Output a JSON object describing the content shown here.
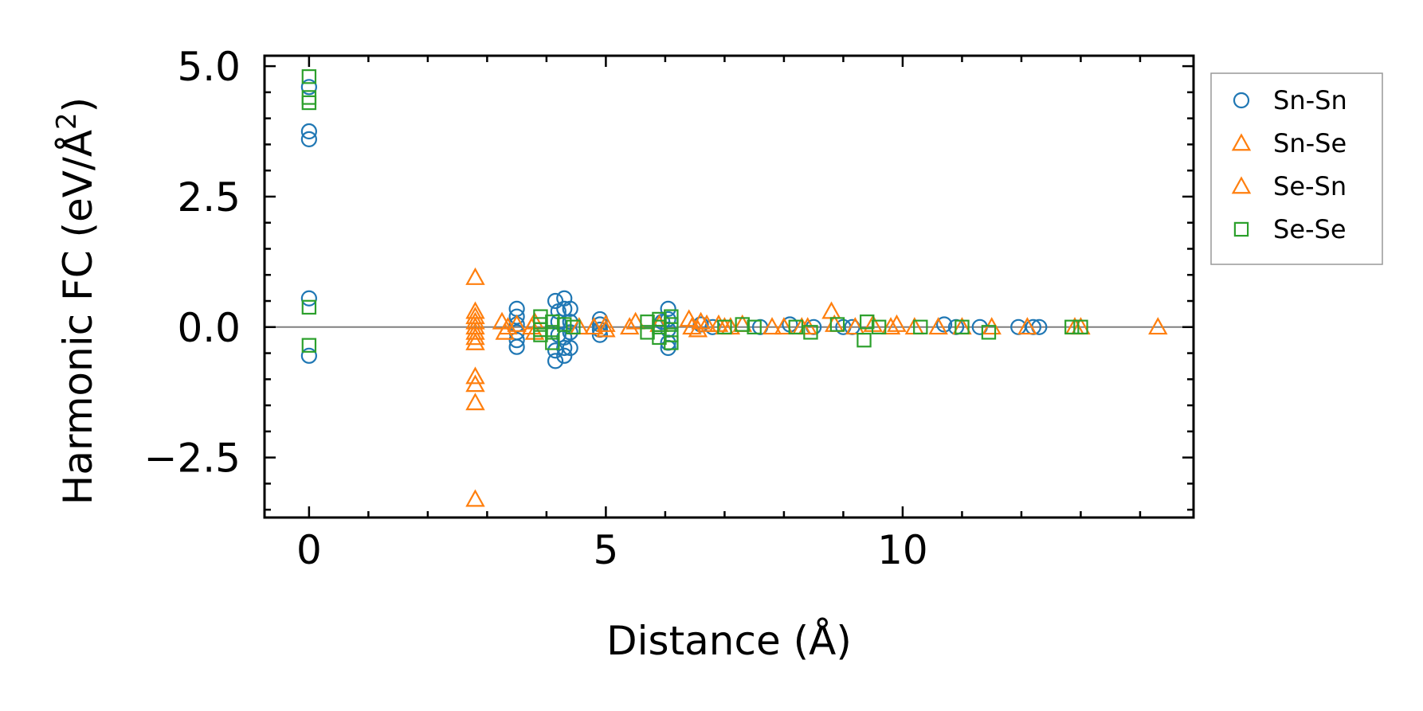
{
  "chart_data": {
    "type": "scatter",
    "xlabel": "Distance (Å)",
    "ylabel": "Harmonic FC (eV/Å²)",
    "ylabel_main": "Harmonic FC (eV/Å",
    "ylabel_sup": "2",
    "ylabel_close": ")",
    "xlim": [
      -0.75,
      14.9
    ],
    "ylim": [
      -3.65,
      5.2
    ],
    "x_ticks": [
      {
        "value": 0,
        "label": "0"
      },
      {
        "value": 5,
        "label": "5"
      },
      {
        "value": 10,
        "label": "10"
      }
    ],
    "y_ticks": [
      {
        "value": -2.5,
        "label": "−2.5"
      },
      {
        "value": 0,
        "label": "0.0"
      },
      {
        "value": 2.5,
        "label": "2.5"
      },
      {
        "value": 5.0,
        "label": "5.0"
      }
    ],
    "zero_line": 0,
    "legend_position": "outside right, top",
    "series": [
      {
        "name": "Sn-Sn",
        "marker": "circle",
        "color": "#1f77b4",
        "points": [
          [
            0,
            4.6
          ],
          [
            0,
            3.75
          ],
          [
            0,
            3.6
          ],
          [
            0,
            0.55
          ],
          [
            0,
            -0.55
          ],
          [
            3.5,
            0.35
          ],
          [
            3.5,
            0.2
          ],
          [
            3.5,
            0.05
          ],
          [
            3.5,
            -0.1
          ],
          [
            3.5,
            -0.25
          ],
          [
            3.5,
            -0.38
          ],
          [
            4.15,
            0.5
          ],
          [
            4.2,
            0.3
          ],
          [
            4.2,
            0.1
          ],
          [
            4.2,
            -0.15
          ],
          [
            4.15,
            -0.45
          ],
          [
            4.15,
            -0.65
          ],
          [
            4.3,
            0.55
          ],
          [
            4.3,
            0.35
          ],
          [
            4.3,
            -0.2
          ],
          [
            4.3,
            -0.4
          ],
          [
            4.3,
            -0.55
          ],
          [
            4.4,
            0.35
          ],
          [
            4.4,
            0.1
          ],
          [
            4.4,
            -0.1
          ],
          [
            4.4,
            -0.4
          ],
          [
            4.9,
            0.15
          ],
          [
            4.9,
            0.05
          ],
          [
            4.9,
            -0.05
          ],
          [
            4.9,
            -0.15
          ],
          [
            5.95,
            0.1
          ],
          [
            6.05,
            0.35
          ],
          [
            6.05,
            0.15
          ],
          [
            6.05,
            -0.05
          ],
          [
            6.05,
            -0.3
          ],
          [
            6.05,
            -0.4
          ],
          [
            6.6,
            0.05
          ],
          [
            6.8,
            0.0
          ],
          [
            7.6,
            0.0
          ],
          [
            8.1,
            0.05
          ],
          [
            8.5,
            0.0
          ],
          [
            9.0,
            0.0
          ],
          [
            9.15,
            0.0
          ],
          [
            10.7,
            0.05
          ],
          [
            10.9,
            0.0
          ],
          [
            11.3,
            0.0
          ],
          [
            11.95,
            0.0
          ],
          [
            12.2,
            0.0
          ],
          [
            12.3,
            0.0
          ]
        ]
      },
      {
        "name": "Sn-Se",
        "marker": "triangle",
        "color": "#ff7f0e",
        "points": [
          [
            2.8,
            0.95
          ],
          [
            2.8,
            0.3
          ],
          [
            2.8,
            0.2
          ],
          [
            2.8,
            0.1
          ],
          [
            2.8,
            0.0
          ],
          [
            2.8,
            -0.1
          ],
          [
            2.8,
            -0.2
          ],
          [
            2.8,
            -0.3
          ],
          [
            2.8,
            -0.95
          ],
          [
            2.8,
            -1.1
          ],
          [
            2.8,
            -1.45
          ],
          [
            2.8,
            -3.3
          ],
          [
            3.25,
            0.1
          ],
          [
            3.3,
            -0.1
          ],
          [
            3.35,
            0.0
          ],
          [
            3.75,
            0.0
          ],
          [
            3.8,
            0.1
          ],
          [
            3.8,
            -0.1
          ],
          [
            4.55,
            0.0
          ],
          [
            5.0,
            0.05
          ],
          [
            5.0,
            -0.05
          ],
          [
            5.4,
            0.0
          ],
          [
            5.5,
            0.1
          ],
          [
            6.4,
            0.15
          ],
          [
            6.45,
            0.0
          ],
          [
            6.6,
            0.1
          ],
          [
            6.7,
            0.05
          ],
          [
            6.9,
            0.05
          ],
          [
            7.1,
            0.0
          ],
          [
            7.3,
            0.05
          ],
          [
            7.8,
            0.0
          ],
          [
            8.0,
            0.0
          ],
          [
            8.4,
            0.0
          ],
          [
            8.8,
            0.3
          ],
          [
            8.85,
            0.05
          ],
          [
            9.2,
            0.0
          ],
          [
            9.5,
            0.05
          ],
          [
            9.9,
            0.05
          ],
          [
            10.6,
            0.0
          ],
          [
            11.5,
            0.0
          ],
          [
            12.1,
            0.0
          ],
          [
            12.9,
            0.0
          ],
          [
            14.3,
            0.0
          ]
        ]
      },
      {
        "name": "Se-Sn",
        "marker": "triangle",
        "color": "#ff7f0e",
        "points": [
          [
            3.5,
            0.05
          ],
          [
            4.8,
            0.0
          ],
          [
            5.9,
            0.05
          ],
          [
            6.55,
            -0.05
          ],
          [
            7.0,
            0.0
          ],
          [
            8.3,
            0.0
          ],
          [
            9.8,
            0.0
          ],
          [
            10.2,
            0.0
          ],
          [
            11.0,
            0.0
          ],
          [
            13.0,
            0.0
          ]
        ]
      },
      {
        "name": "Se-Se",
        "marker": "square",
        "color": "#2ca02c",
        "points": [
          [
            0,
            4.8
          ],
          [
            0,
            4.4
          ],
          [
            0,
            4.3
          ],
          [
            0,
            0.38
          ],
          [
            0,
            -0.35
          ],
          [
            3.9,
            0.2
          ],
          [
            3.9,
            0.05
          ],
          [
            3.9,
            -0.05
          ],
          [
            3.9,
            -0.15
          ],
          [
            4.1,
            0.1
          ],
          [
            4.1,
            -0.1
          ],
          [
            4.1,
            -0.3
          ],
          [
            4.3,
            0.05
          ],
          [
            4.45,
            0.0
          ],
          [
            5.7,
            0.1
          ],
          [
            5.7,
            -0.1
          ],
          [
            5.9,
            0.15
          ],
          [
            5.9,
            0.0
          ],
          [
            5.9,
            -0.2
          ],
          [
            6.1,
            0.2
          ],
          [
            6.1,
            0.05
          ],
          [
            6.1,
            -0.15
          ],
          [
            6.1,
            -0.3
          ],
          [
            7.0,
            0.0
          ],
          [
            7.3,
            0.05
          ],
          [
            7.5,
            0.0
          ],
          [
            8.2,
            0.0
          ],
          [
            8.45,
            -0.1
          ],
          [
            8.9,
            0.05
          ],
          [
            9.35,
            -0.25
          ],
          [
            9.4,
            0.1
          ],
          [
            9.6,
            0.0
          ],
          [
            10.3,
            0.0
          ],
          [
            11.0,
            0.0
          ],
          [
            11.45,
            -0.1
          ],
          [
            12.85,
            0.0
          ],
          [
            13.0,
            0.0
          ]
        ]
      }
    ],
    "legend": [
      {
        "name": "Sn-Sn",
        "marker": "circle",
        "color": "#1f77b4"
      },
      {
        "name": "Sn-Se",
        "marker": "triangle",
        "color": "#ff7f0e"
      },
      {
        "name": "Se-Sn",
        "marker": "triangle",
        "color": "#ff7f0e"
      },
      {
        "name": "Se-Se",
        "marker": "square",
        "color": "#2ca02c"
      }
    ]
  }
}
